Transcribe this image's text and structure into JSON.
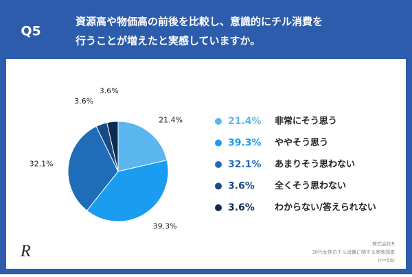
{
  "header": {
    "question": "Q5",
    "title_lines": [
      "資源高や物価高の前後を比較し、意識的にチル消費を",
      "行うことが増えたと実感していますか。"
    ]
  },
  "logo": "R",
  "footer": [
    "株式会社R",
    "30代女性のチル消費に関する実態調査",
    "(n=56)"
  ],
  "chart_data": {
    "type": "pie",
    "categories": [
      "非常にそう思う",
      "ややそう思う",
      "あまりそう思わない",
      "全くそう思わない",
      "わからない/答えられない"
    ],
    "values": [
      21.4,
      39.3,
      32.1,
      3.6,
      3.6
    ],
    "value_labels": [
      "21.4%",
      "39.3%",
      "32.1%",
      "3.6%",
      "3.6%"
    ],
    "colors": [
      "#5bb6f0",
      "#1a9cf0",
      "#1f6db8",
      "#1a4a85",
      "#0f2b52"
    ]
  }
}
